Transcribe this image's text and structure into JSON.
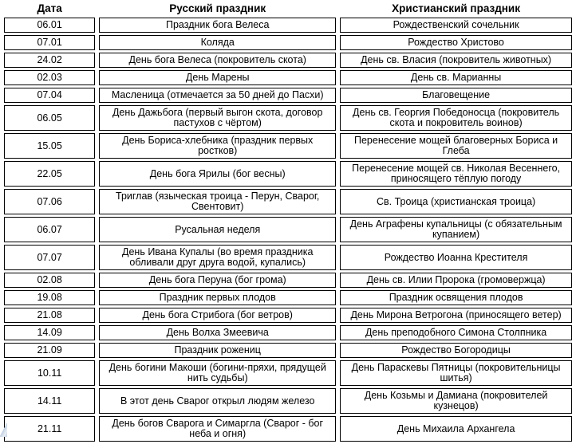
{
  "colors": {
    "background": "#ffffff",
    "border": "#000000",
    "text": "#000000",
    "corner_artifact": "#c2cfe0"
  },
  "table": {
    "headers": [
      "Дата",
      "Русский праздник",
      "Христианский праздник"
    ],
    "rows": [
      {
        "date": "06.01",
        "russian": "Праздник бога Велеса",
        "christian": "Рождественский сочельник"
      },
      {
        "date": "07.01",
        "russian": "Коляда",
        "christian": "Рождество Христово"
      },
      {
        "date": "24.02",
        "russian": "День бога Велеса (покровитель скота)",
        "christian": "День св. Власия (покровитель животных)"
      },
      {
        "date": "02.03",
        "russian": "День Марены",
        "christian": "День св. Марианны"
      },
      {
        "date": "07.04",
        "russian": "Масленица (отмечается за 50 дней до Пасхи)",
        "christian": "Благовещение"
      },
      {
        "date": "06.05",
        "russian": "День Дажьбога (первый выгон скота, договор пастухов с чёртом)",
        "christian": "День св. Георгия Победоносца (покровитель скота и покровитель воинов)"
      },
      {
        "date": "15.05",
        "russian": "День Бориса-хлебника (праздник первых ростков)",
        "christian": "Перенесение мощей благоверных Бориса и Глеба"
      },
      {
        "date": "22.05",
        "russian": "День бога Ярилы (бог весны)",
        "christian": "Перенесение мощей св. Николая Весеннего, приносящего тёплую погоду"
      },
      {
        "date": "07.06",
        "russian": "Триглав (языческая троица - Перун, Сварог, Свентовит)",
        "christian": "Св. Троица (христианская троица)"
      },
      {
        "date": "06.07",
        "russian": "Русальная неделя",
        "christian": "День Аграфены купальницы (с обязательным купанием)"
      },
      {
        "date": "07.07",
        "russian": "День Ивана Купалы (во время праздника обливали друг друга водой, купались)",
        "christian": "Рождество Иоанна Крестителя"
      },
      {
        "date": "02.08",
        "russian": "День бога Перуна (бог грома)",
        "christian": "День св. Илии Пророка (громовержца)"
      },
      {
        "date": "19.08",
        "russian": "Праздник первых плодов",
        "christian": "Праздник освящения плодов"
      },
      {
        "date": "21.08",
        "russian": "День бога Стрибога (бог ветров)",
        "christian": "День Мирона Ветрогона (приносящего ветер)"
      },
      {
        "date": "14.09",
        "russian": "День Волха Змеевича",
        "christian": "День преподобного Симона Столпника"
      },
      {
        "date": "21.09",
        "russian": "Праздник рожениц",
        "christian": "Рождество Богородицы"
      },
      {
        "date": "10.11",
        "russian": "День богини Макоши (богини-пряхи, прядущей нить судьбы)",
        "christian": "День Параскевы Пятницы (покровительницы шитья)"
      },
      {
        "date": "14.11",
        "russian": "В этот день Сварог открыл людям железо",
        "christian": "День Козьмы и Дамиана (покровителей кузнецов)"
      },
      {
        "date": "21.11",
        "russian": "День богов Сварога и Симаргла (Сварог - бог неба и огня)",
        "christian": "День Михаила Архангела"
      }
    ]
  }
}
